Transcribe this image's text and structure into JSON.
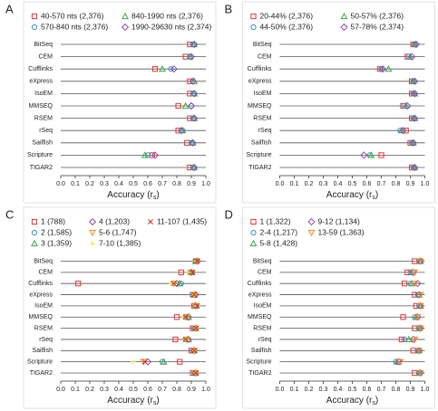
{
  "chart_data": [
    {
      "type": "dot",
      "panel": "A",
      "categories": [
        "BitSeq",
        "CEM",
        "Cufflinks",
        "eXpress",
        "IsoEM",
        "MMSEQ",
        "RSEM",
        "rSeq",
        "Sailfish",
        "Scripture",
        "TIGAR2"
      ],
      "series": [
        {
          "name": "40-570 nts (2,376)",
          "color": "#e8312f",
          "marker": "square",
          "values": [
            0.89,
            0.86,
            0.65,
            0.89,
            0.89,
            0.81,
            0.89,
            0.81,
            0.87,
            0.63,
            0.89
          ]
        },
        {
          "name": "570-840 nts (2,376)",
          "color": "#3a8fd0",
          "marker": "circle",
          "values": [
            0.91,
            0.89,
            0.76,
            0.91,
            0.91,
            0.9,
            0.91,
            0.84,
            0.9,
            0.6,
            0.91
          ]
        },
        {
          "name": "840-1990 nts (2,376)",
          "color": "#3aa844",
          "marker": "triangle",
          "values": [
            0.92,
            0.89,
            0.7,
            0.92,
            0.92,
            0.86,
            0.92,
            0.84,
            0.91,
            0.58,
            0.92
          ]
        },
        {
          "name": "1990-29630 nts (2,374)",
          "color": "#8e4fb0",
          "marker": "diamond",
          "values": [
            0.92,
            0.9,
            0.78,
            0.91,
            0.92,
            0.9,
            0.92,
            0.83,
            0.91,
            0.65,
            0.92
          ]
        }
      ],
      "xlabel": [
        "Accuracy (r",
        "s",
        ")"
      ],
      "xlim": [
        0,
        1
      ],
      "xticks": [
        {
          "value": 0,
          "label": "0.0"
        },
        {
          "value": 0.1,
          "label": "0.1"
        },
        {
          "value": 0.2,
          "label": "0.2"
        },
        {
          "value": 0.3,
          "label": "0.3"
        },
        {
          "value": 0.4,
          "label": "0.4"
        },
        {
          "value": 0.5,
          "label": "0.5"
        },
        {
          "value": 0.6,
          "label": "0.6"
        },
        {
          "value": 0.7,
          "label": "0.7"
        },
        {
          "value": 0.8,
          "label": "0.8"
        },
        {
          "value": 0.9,
          "label": "0.9"
        },
        {
          "value": 1,
          "label": "1.0"
        }
      ]
    },
    {
      "type": "dot",
      "panel": "B",
      "categories": [
        "BitSeq",
        "CEM",
        "Cufflinks",
        "eXpress",
        "IsoEM",
        "MMSEQ",
        "RSEM",
        "rSeq",
        "Sailfish",
        "Scripture",
        "TIGAR2"
      ],
      "series": [
        {
          "name": "20-44% (2,376)",
          "color": "#e8312f",
          "marker": "square",
          "values": [
            0.92,
            0.88,
            0.69,
            0.91,
            0.91,
            0.85,
            0.91,
            0.87,
            0.9,
            0.7,
            0.91
          ]
        },
        {
          "name": "44-50% (2,376)",
          "color": "#3a8fd0",
          "marker": "circle",
          "values": [
            0.93,
            0.89,
            0.7,
            0.92,
            0.92,
            0.86,
            0.92,
            0.83,
            0.91,
            0.62,
            0.92
          ]
        },
        {
          "name": "50-57% (2,376)",
          "color": "#3aa844",
          "marker": "triangle",
          "values": [
            0.93,
            0.9,
            0.75,
            0.92,
            0.93,
            0.87,
            0.93,
            0.84,
            0.92,
            0.63,
            0.93
          ]
        },
        {
          "name": "57-78% (2,374)",
          "color": "#8e4fb0",
          "marker": "diamond",
          "values": [
            0.94,
            0.91,
            0.71,
            0.93,
            0.93,
            0.88,
            0.93,
            0.85,
            0.92,
            0.58,
            0.93
          ]
        }
      ],
      "xlabel": [
        "Accuracy (r",
        "s",
        ")"
      ],
      "xlim": [
        0,
        1
      ],
      "xticks": [
        {
          "value": 0,
          "label": "0.0"
        },
        {
          "value": 0.1,
          "label": "0.1"
        },
        {
          "value": 0.2,
          "label": "0.2"
        },
        {
          "value": 0.3,
          "label": "0.3"
        },
        {
          "value": 0.4,
          "label": "0.4"
        },
        {
          "value": 0.5,
          "label": "0.5"
        },
        {
          "value": 0.6,
          "label": "0.6"
        },
        {
          "value": 0.7,
          "label": "0.7"
        },
        {
          "value": 0.8,
          "label": "0.8"
        },
        {
          "value": 0.9,
          "label": "0.9"
        },
        {
          "value": 1,
          "label": "1.0"
        }
      ]
    },
    {
      "type": "dot",
      "panel": "C",
      "categories": [
        "BitSeq",
        "CEM",
        "Cufflinks",
        "eXpress",
        "IsoEM",
        "MMSEQ",
        "RSEM",
        "rSeq",
        "Sailfish",
        "Scripture",
        "TIGAR2"
      ],
      "series": [
        {
          "name": "1 (788)",
          "color": "#e8312f",
          "marker": "square",
          "values": [
            0.93,
            0.83,
            0.12,
            0.91,
            0.92,
            0.8,
            0.91,
            0.79,
            0.9,
            0.82,
            0.91
          ]
        },
        {
          "name": "2 (1,585)",
          "color": "#3a8fd0",
          "marker": "circle",
          "values": [
            0.93,
            0.89,
            0.83,
            0.91,
            0.93,
            0.86,
            0.92,
            0.86,
            0.91,
            0.7,
            0.92
          ]
        },
        {
          "name": "3 (1,359)",
          "color": "#3aa844",
          "marker": "triangle",
          "values": [
            0.93,
            0.9,
            0.82,
            0.92,
            0.93,
            0.88,
            0.93,
            0.88,
            0.92,
            0.71,
            0.93
          ]
        },
        {
          "name": "4 (1,203)",
          "color": "#8e4fb0",
          "marker": "diamond",
          "values": [
            0.94,
            0.9,
            0.8,
            0.93,
            0.93,
            0.88,
            0.93,
            0.88,
            0.92,
            0.6,
            0.93
          ]
        },
        {
          "name": "5-6 (1,747)",
          "color": "#f28a1e",
          "marker": "down-triangle",
          "values": [
            0.94,
            0.9,
            0.78,
            0.92,
            0.93,
            0.87,
            0.93,
            0.87,
            0.92,
            0.57,
            0.93
          ]
        },
        {
          "name": "7-10 (1,385)",
          "color": "#f2e12a",
          "marker": "plus",
          "values": [
            0.93,
            0.88,
            0.76,
            0.92,
            0.93,
            0.85,
            0.93,
            0.86,
            0.92,
            0.5,
            0.93
          ]
        },
        {
          "name": "11-107 (1,435)",
          "color": "#c8302a",
          "marker": "cross",
          "values": [
            0.94,
            0.91,
            0.78,
            0.92,
            0.94,
            0.86,
            0.93,
            0.86,
            0.92,
            0.58,
            0.93
          ]
        }
      ],
      "xlabel": [
        "Accuracy (r",
        "s",
        ")"
      ],
      "xlim": [
        0,
        1
      ],
      "xticks": [
        {
          "value": 0,
          "label": "0.0"
        },
        {
          "value": 0.1,
          "label": "0.1"
        },
        {
          "value": 0.2,
          "label": "0.2"
        },
        {
          "value": 0.3,
          "label": "0.3"
        },
        {
          "value": 0.4,
          "label": "0.4"
        },
        {
          "value": 0.5,
          "label": "0.5"
        },
        {
          "value": 0.6,
          "label": "0.6"
        },
        {
          "value": 0.7,
          "label": "0.7"
        },
        {
          "value": 0.8,
          "label": "0.8"
        },
        {
          "value": 0.9,
          "label": "0.9"
        },
        {
          "value": 1,
          "label": "1.0"
        }
      ]
    },
    {
      "type": "dot",
      "panel": "D",
      "categories": [
        "BitSeq",
        "CEM",
        "Cufflinks",
        "eXpress",
        "IsoEM",
        "MMSEQ",
        "RSEM",
        "rSeq",
        "Sailfish",
        "Scripture",
        "TIGAR2"
      ],
      "series": [
        {
          "name": "1 (1,322)",
          "color": "#e8312f",
          "marker": "square",
          "values": [
            0.93,
            0.88,
            0.86,
            0.93,
            0.94,
            0.85,
            0.93,
            0.84,
            0.92,
            0.82,
            0.93
          ]
        },
        {
          "name": "2-4 (1,217)",
          "color": "#3a8fd0",
          "marker": "circle",
          "values": [
            0.96,
            0.9,
            0.9,
            0.95,
            0.96,
            0.93,
            0.96,
            0.86,
            0.95,
            0.8,
            0.96
          ]
        },
        {
          "name": "5-8 (1,428)",
          "color": "#3aa844",
          "marker": "triangle",
          "values": [
            0.97,
            0.91,
            0.91,
            0.96,
            0.97,
            0.94,
            0.96,
            0.89,
            0.96,
            0.81,
            0.96
          ]
        },
        {
          "name": "9-12 (1,134)",
          "color": "#8e4fb0",
          "marker": "diamond",
          "values": [
            0.97,
            0.92,
            0.95,
            0.96,
            0.97,
            0.95,
            0.97,
            0.92,
            0.96,
            0.82,
            0.97
          ]
        },
        {
          "name": "13-59 (1,363)",
          "color": "#f28a1e",
          "marker": "down-triangle",
          "values": [
            0.97,
            0.93,
            0.93,
            0.97,
            0.97,
            0.95,
            0.97,
            0.93,
            0.96,
            0.83,
            0.97
          ]
        }
      ],
      "xlabel": [
        "Accuracy (r",
        "s",
        ")"
      ],
      "xlim": [
        0,
        1
      ],
      "xticks": [
        {
          "value": 0,
          "label": "0.0"
        },
        {
          "value": 0.1,
          "label": "0.1"
        },
        {
          "value": 0.2,
          "label": "0.2"
        },
        {
          "value": 0.3,
          "label": "0.3"
        },
        {
          "value": 0.4,
          "label": "0.4"
        },
        {
          "value": 0.5,
          "label": "0.5"
        },
        {
          "value": 0.6,
          "label": "0.6"
        },
        {
          "value": 0.7,
          "label": "0.7"
        },
        {
          "value": 0.8,
          "label": "0.8"
        },
        {
          "value": 0.9,
          "label": "0.9"
        },
        {
          "value": 1,
          "label": "1.0"
        }
      ]
    }
  ]
}
